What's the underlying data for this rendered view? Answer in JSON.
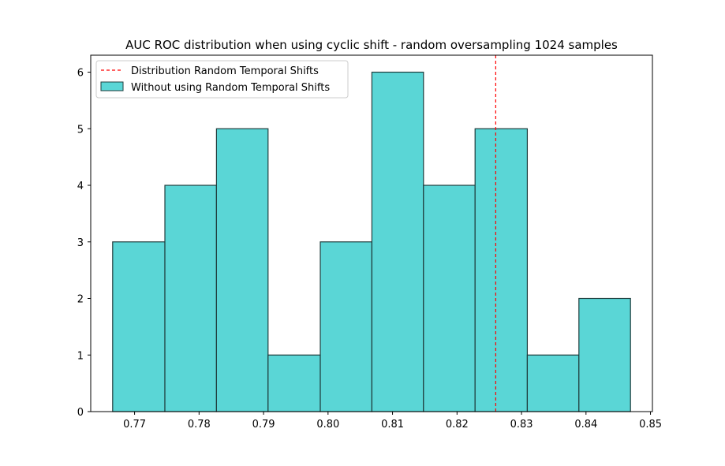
{
  "chart_data": {
    "type": "bar",
    "title": "AUC ROC distribution when using cyclic shift - random oversampling 1024 samples",
    "xlabel": "",
    "ylabel": "",
    "xlim": [
      0.7632,
      0.8503
    ],
    "ylim": [
      0,
      6.3
    ],
    "x_ticks": [
      "0.77",
      "0.78",
      "0.79",
      "0.80",
      "0.81",
      "0.82",
      "0.83",
      "0.84",
      "0.85"
    ],
    "y_ticks": [
      "0",
      "1",
      "2",
      "3",
      "4",
      "5",
      "6"
    ],
    "bins": [
      {
        "start": 0.7666,
        "end": 0.7747,
        "count": 3
      },
      {
        "start": 0.7747,
        "end": 0.7827,
        "count": 4
      },
      {
        "start": 0.7827,
        "end": 0.7907,
        "count": 5
      },
      {
        "start": 0.7907,
        "end": 0.7988,
        "count": 1
      },
      {
        "start": 0.7988,
        "end": 0.8068,
        "count": 3
      },
      {
        "start": 0.8068,
        "end": 0.8148,
        "count": 6
      },
      {
        "start": 0.8148,
        "end": 0.8228,
        "count": 4
      },
      {
        "start": 0.8228,
        "end": 0.8309,
        "count": 5
      },
      {
        "start": 0.8309,
        "end": 0.8389,
        "count": 1
      },
      {
        "start": 0.8389,
        "end": 0.8469,
        "count": 2
      }
    ],
    "reference_line": {
      "x": 0.826,
      "color": "#ff0000",
      "style": "dashed"
    },
    "legend": {
      "position": "top-left",
      "entries": [
        {
          "label": "Distribution Random Temporal Shifts",
          "kind": "dashed-line",
          "color": "#ff0000"
        },
        {
          "label": "Without using Random Temporal Shifts",
          "kind": "patch",
          "color": "#5ad6d6"
        }
      ]
    },
    "colors": {
      "bar_fill": "#5ad6d6",
      "bar_edge": "#1f3d3d",
      "ref_line": "#ff0000"
    },
    "grid": false
  }
}
